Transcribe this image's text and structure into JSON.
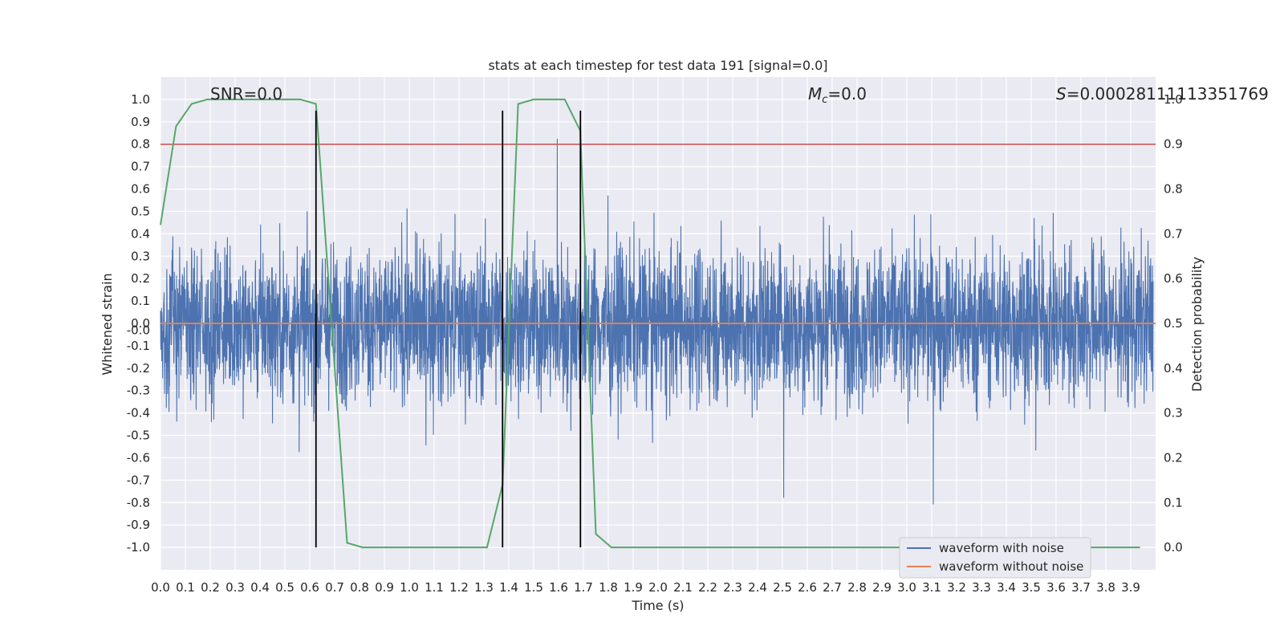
{
  "chart_data": {
    "type": "line",
    "title": "stats at each timestep for test data 191 [signal=0.0]",
    "xlabel": "Time (s)",
    "ylabel": "Whitened strain",
    "y2label": "Detection probability",
    "xlim": [
      0.0,
      4.0
    ],
    "ylim": [
      -1.1,
      1.1
    ],
    "y2lim": [
      -0.05,
      1.05
    ],
    "x_ticks": [
      "0.0",
      "0.1",
      "0.2",
      "0.3",
      "0.4",
      "0.5",
      "0.6",
      "0.7",
      "0.8",
      "0.9",
      "1.0",
      "1.1",
      "1.2",
      "1.3",
      "1.4",
      "1.5",
      "1.6",
      "1.7",
      "1.8",
      "1.9",
      "2.0",
      "2.1",
      "2.2",
      "2.3",
      "2.4",
      "2.5",
      "2.6",
      "2.7",
      "2.8",
      "2.9",
      "3.0",
      "3.1",
      "3.2",
      "3.3",
      "3.4",
      "3.5",
      "3.6",
      "3.7",
      "3.8",
      "3.9"
    ],
    "y_ticks": [
      "1.0",
      "0.9",
      "0.8",
      "0.7",
      "0.6",
      "0.5",
      "0.4",
      "0.3",
      "0.2",
      "0.1",
      "0.0",
      "-0.0",
      "-0.1",
      "-0.2",
      "-0.3",
      "-0.4",
      "-0.5",
      "-0.6",
      "-0.7",
      "-0.8",
      "-0.9",
      "-1.0"
    ],
    "y_tick_values": [
      1.0,
      0.9,
      0.8,
      0.7,
      0.6,
      0.5,
      0.4,
      0.3,
      0.2,
      0.1,
      0.0,
      -0.03,
      -0.1,
      -0.2,
      -0.3,
      -0.4,
      -0.5,
      -0.6,
      -0.7,
      -0.8,
      -0.9,
      -1.0
    ],
    "y2_ticks": [
      "1.0",
      "0.9",
      "0.8",
      "0.7",
      "0.6",
      "0.5",
      "0.4",
      "0.3",
      "0.2",
      "0.1",
      "0.0"
    ],
    "y2_tick_values": [
      1.0,
      0.9,
      0.8,
      0.7,
      0.6,
      0.5,
      0.4,
      0.3,
      0.2,
      0.1,
      0.0
    ],
    "annotations": {
      "snr": "SNR=0.0",
      "mc": "=0.0",
      "mc_symbol": "M",
      "mc_subscript": "c",
      "s": "=0.00028111113351769",
      "s_symbol": "S"
    },
    "threshold": 0.9,
    "vlines_x": [
      0.625,
      1.375,
      1.688
    ],
    "vlines_yrange": [
      -1.0,
      0.95
    ],
    "series": [
      {
        "name": "waveform with noise",
        "color": "#4c72b0",
        "amplitude_env": 0.45,
        "noise_seed": 191,
        "n_samples": 4096
      },
      {
        "name": "waveform without noise",
        "color": "#dd8452",
        "value": 0.0
      },
      {
        "color": "#55a868",
        "axis": "right",
        "x": [
          0.0,
          0.0625,
          0.125,
          0.1875,
          0.25,
          0.3125,
          0.375,
          0.4375,
          0.5,
          0.5625,
          0.625,
          0.6875,
          0.75,
          0.8125,
          0.875,
          0.9375,
          1.0,
          1.0625,
          1.125,
          1.1875,
          1.25,
          1.3125,
          1.375,
          1.4375,
          1.5,
          1.5625,
          1.625,
          1.6875,
          1.75,
          1.8125,
          1.875,
          1.9375,
          2.0,
          2.5,
          3.0,
          3.5,
          3.9375
        ],
        "y": [
          0.72,
          0.94,
          0.99,
          1.0,
          1.0,
          1.0,
          1.0,
          1.0,
          1.0,
          1.0,
          0.99,
          0.5,
          0.01,
          0.0,
          0.0,
          0.0,
          0.0,
          0.0,
          0.0,
          0.0,
          0.0,
          0.0,
          0.14,
          0.99,
          1.0,
          1.0,
          1.0,
          0.93,
          0.03,
          0.0,
          0.0,
          0.0,
          0.0,
          0.0,
          0.0,
          0.0,
          0.0
        ]
      }
    ],
    "legend_placement": "lower-right",
    "grid": true
  }
}
